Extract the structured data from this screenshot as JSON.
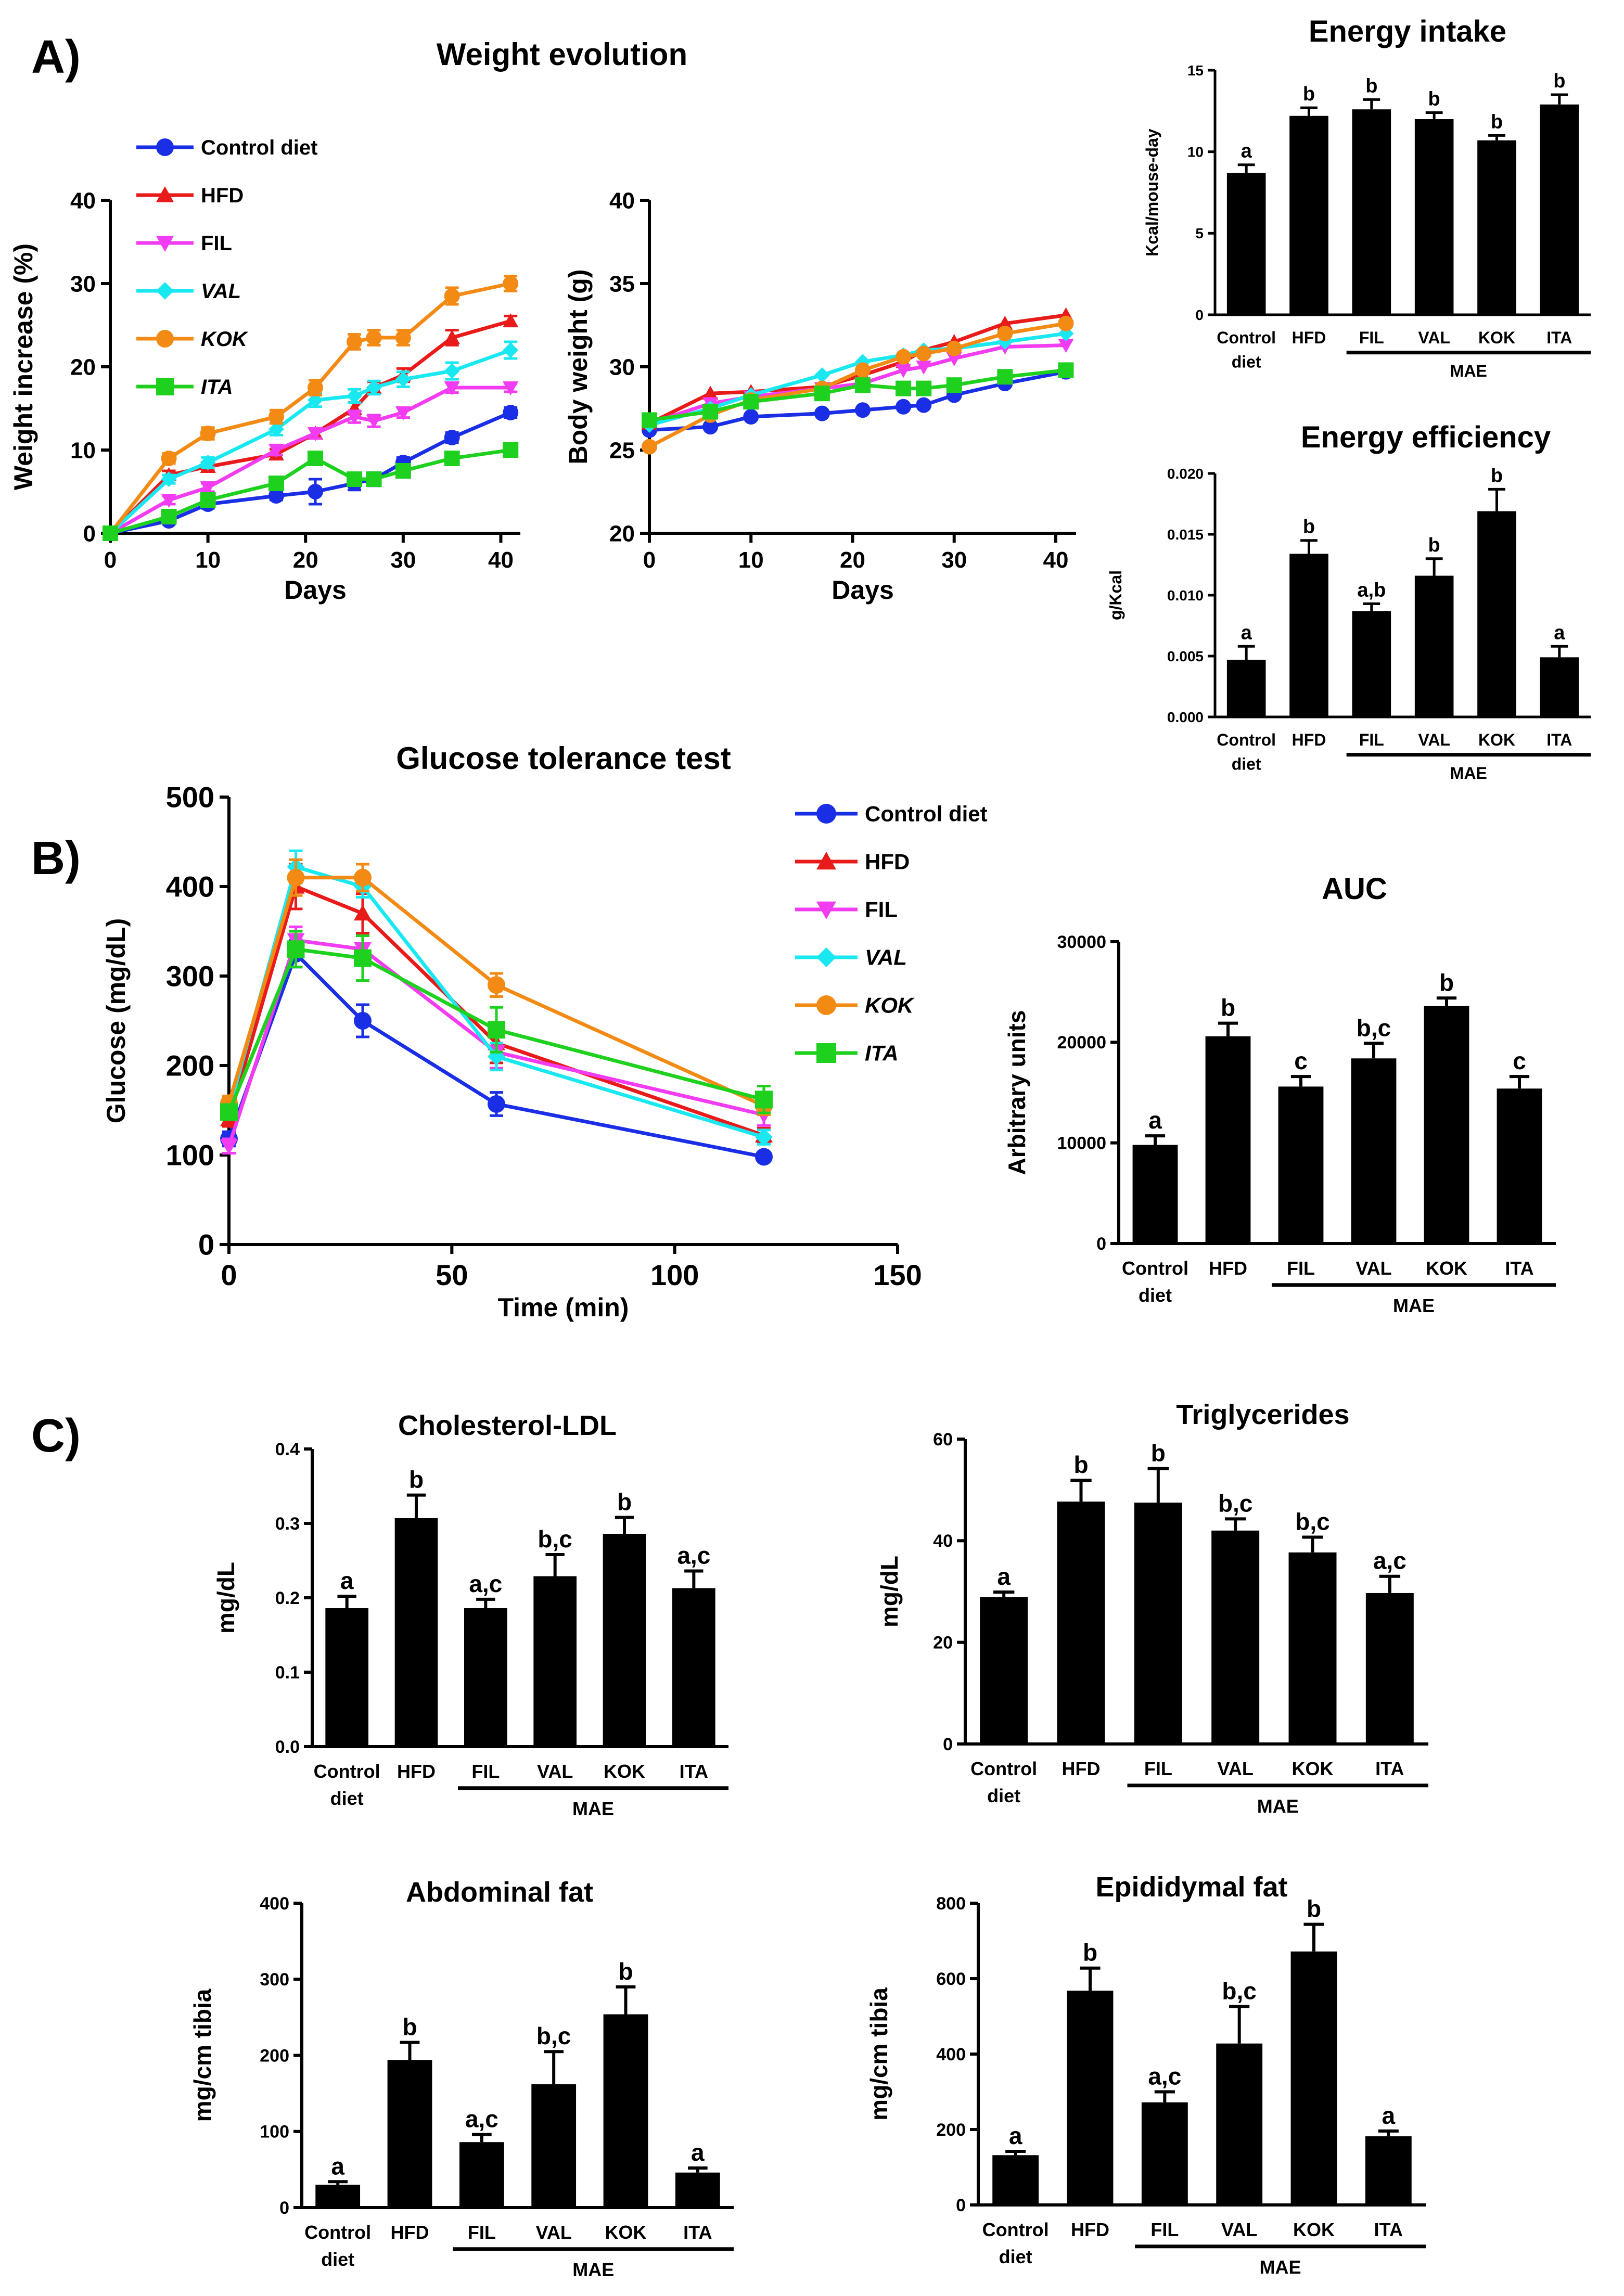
{
  "panels": {
    "a": "A)",
    "b": "B)",
    "c": "C)"
  },
  "legend": {
    "control": "Control diet",
    "hfd": "HFD",
    "fil": "FIL",
    "val": "VAL",
    "kok": "KOK",
    "ita": "ITA"
  },
  "group_label": "MAE",
  "chart_data": [
    {
      "id": "weight_increase",
      "type": "line",
      "title": "Weight evolution",
      "xlabel": "Days",
      "ylabel": "Weight increase (%)",
      "xlim": [
        0,
        42
      ],
      "ylim": [
        0,
        40
      ],
      "xticks": [
        0,
        10,
        20,
        30,
        40
      ],
      "yticks": [
        0,
        10,
        20,
        30,
        40
      ],
      "series": [
        {
          "name": "Control diet",
          "color": "#1a2ee6",
          "marker": "circle",
          "x": [
            0,
            6,
            10,
            17,
            21,
            25,
            27,
            30,
            35,
            41
          ],
          "y": [
            0,
            1.5,
            3.5,
            4.5,
            5,
            6,
            6.5,
            8.5,
            11.5,
            14.5
          ],
          "err": [
            0,
            0.4,
            0.5,
            0.5,
            1.5,
            0.8,
            0.8,
            0.6,
            0.6,
            0.6
          ]
        },
        {
          "name": "HFD",
          "color": "#e81a1a",
          "marker": "triangle",
          "x": [
            0,
            6,
            10,
            17,
            21,
            25,
            27,
            30,
            35,
            41
          ],
          "y": [
            0,
            7,
            8,
            9.5,
            12,
            15,
            17.5,
            19,
            23.5,
            25.5
          ],
          "err": [
            0,
            0.5,
            0.5,
            0.6,
            0.6,
            0.7,
            0.7,
            0.8,
            0.9,
            0.6
          ]
        },
        {
          "name": "FIL",
          "color": "#f23cf2",
          "marker": "triangle-down",
          "x": [
            0,
            6,
            10,
            17,
            21,
            25,
            27,
            30,
            35,
            41
          ],
          "y": [
            0,
            4,
            5.5,
            10,
            12,
            14,
            13.5,
            14.5,
            17.5,
            17.5
          ],
          "err": [
            0,
            0.5,
            0.5,
            0.6,
            0.6,
            0.7,
            0.7,
            0.6,
            0.6,
            0.5
          ]
        },
        {
          "name": "VAL",
          "color": "#1ae8f0",
          "marker": "diamond",
          "x": [
            0,
            6,
            10,
            17,
            21,
            25,
            27,
            30,
            35,
            41
          ],
          "y": [
            0,
            6.5,
            8.5,
            12.5,
            16,
            16.5,
            17.5,
            18.5,
            19.5,
            22
          ],
          "err": [
            0,
            0.5,
            0.6,
            0.7,
            0.8,
            0.8,
            0.8,
            0.9,
            1.0,
            1.0
          ]
        },
        {
          "name": "KOK",
          "color": "#f28a14",
          "marker": "circle",
          "x": [
            0,
            6,
            10,
            17,
            21,
            25,
            27,
            30,
            35,
            41
          ],
          "y": [
            0,
            9,
            12,
            14,
            17.5,
            23,
            23.5,
            23.5,
            28.5,
            30
          ],
          "err": [
            0,
            0.6,
            0.7,
            0.8,
            0.9,
            0.9,
            0.9,
            0.9,
            1.0,
            0.9
          ]
        },
        {
          "name": "ITA",
          "color": "#1fd11f",
          "marker": "square",
          "x": [
            0,
            6,
            10,
            17,
            21,
            25,
            27,
            30,
            35,
            41
          ],
          "y": [
            0,
            2,
            4,
            6,
            9,
            6.5,
            6.5,
            7.5,
            9,
            10
          ],
          "err": [
            0,
            0.4,
            0.5,
            0.5,
            0.6,
            0.5,
            0.5,
            0.5,
            0.6,
            0.5
          ]
        }
      ]
    },
    {
      "id": "body_weight",
      "type": "line",
      "xlabel": "Days",
      "ylabel": "Body weight (g)",
      "xlim": [
        0,
        42
      ],
      "ylim": [
        20,
        40
      ],
      "xticks": [
        0,
        10,
        20,
        30,
        40
      ],
      "yticks": [
        20,
        25,
        30,
        35,
        40
      ],
      "series": [
        {
          "name": "Control diet",
          "color": "#1a2ee6",
          "marker": "circle",
          "x": [
            0,
            6,
            10,
            17,
            21,
            25,
            27,
            30,
            35,
            41
          ],
          "y": [
            26.2,
            26.4,
            27.0,
            27.2,
            27.4,
            27.6,
            27.7,
            28.3,
            29.0,
            29.7
          ]
        },
        {
          "name": "HFD",
          "color": "#e81a1a",
          "marker": "triangle",
          "x": [
            0,
            6,
            10,
            17,
            21,
            25,
            27,
            30,
            35,
            41
          ],
          "y": [
            26.6,
            28.4,
            28.5,
            28.8,
            29.5,
            30.3,
            31.0,
            31.5,
            32.6,
            33.1
          ]
        },
        {
          "name": "FIL",
          "color": "#f23cf2",
          "marker": "triangle-down",
          "x": [
            0,
            6,
            10,
            17,
            21,
            25,
            27,
            30,
            35,
            41
          ],
          "y": [
            26.6,
            27.8,
            28.2,
            28.7,
            29.0,
            29.8,
            30.0,
            30.5,
            31.2,
            31.3
          ]
        },
        {
          "name": "VAL",
          "color": "#1ae8f0",
          "marker": "diamond",
          "x": [
            0,
            6,
            10,
            17,
            21,
            25,
            27,
            30,
            35,
            41
          ],
          "y": [
            26.5,
            27.5,
            28.3,
            29.5,
            30.3,
            30.7,
            31.0,
            31.1,
            31.5,
            32.0
          ]
        },
        {
          "name": "KOK",
          "color": "#f28a14",
          "marker": "circle",
          "x": [
            0,
            6,
            10,
            17,
            21,
            25,
            27,
            30,
            35,
            41
          ],
          "y": [
            25.2,
            27.1,
            28.0,
            28.7,
            29.8,
            30.6,
            30.8,
            31.1,
            32.0,
            32.6
          ]
        },
        {
          "name": "ITA",
          "color": "#1fd11f",
          "marker": "square",
          "x": [
            0,
            6,
            10,
            17,
            21,
            25,
            27,
            30,
            35,
            41
          ],
          "y": [
            26.8,
            27.3,
            27.9,
            28.4,
            28.9,
            28.7,
            28.7,
            28.9,
            29.4,
            29.8
          ]
        }
      ]
    },
    {
      "id": "energy_intake",
      "type": "bar",
      "title": "Energy intake",
      "ylabel": "Kcal/mouse-day",
      "categories": [
        "Control diet",
        "HFD",
        "FIL",
        "VAL",
        "KOK",
        "ITA"
      ],
      "values": [
        8.7,
        12.2,
        12.6,
        12.0,
        10.7,
        12.9
      ],
      "errors": [
        0.5,
        0.5,
        0.6,
        0.4,
        0.3,
        0.6
      ],
      "letters": [
        "a",
        "b",
        "b",
        "b",
        "b",
        "b"
      ],
      "ylim": [
        0,
        15
      ],
      "yticks": [
        0,
        5,
        10,
        15
      ],
      "ytick_labels": [
        "0",
        "5",
        "10",
        "15"
      ]
    },
    {
      "id": "energy_efficiency",
      "type": "bar",
      "title": "Energy efficiency",
      "ylabel": "g/Kcal",
      "categories": [
        "Control diet",
        "HFD",
        "FIL",
        "VAL",
        "KOK",
        "ITA"
      ],
      "values": [
        0.0047,
        0.0134,
        0.0087,
        0.0116,
        0.0169,
        0.0049
      ],
      "errors": [
        0.0011,
        0.0011,
        0.0006,
        0.0014,
        0.0018,
        0.0009
      ],
      "letters": [
        "a",
        "b",
        "a,b",
        "b",
        "b",
        "a"
      ],
      "ylim": [
        0,
        0.02
      ],
      "yticks": [
        0,
        0.005,
        0.01,
        0.015,
        0.02
      ],
      "ytick_labels": [
        "0.000",
        "0.005",
        "0.010",
        "0.015",
        "0.020"
      ]
    },
    {
      "id": "glucose_tolerance",
      "type": "line",
      "title": "Glucose tolerance test",
      "xlabel": "Time (min)",
      "ylabel": "Glucose (mg/dL)",
      "xlim": [
        0,
        150
      ],
      "ylim": [
        0,
        500
      ],
      "xticks": [
        0,
        50,
        100,
        150
      ],
      "yticks": [
        0,
        100,
        200,
        300,
        400,
        500
      ],
      "series": [
        {
          "name": "Control diet",
          "color": "#1a2ee6",
          "marker": "circle",
          "x": [
            0,
            15,
            30,
            60,
            120
          ],
          "y": [
            118,
            325,
            250,
            157,
            98
          ],
          "err": [
            8,
            15,
            18,
            13,
            5
          ]
        },
        {
          "name": "HFD",
          "color": "#e81a1a",
          "marker": "triangle",
          "x": [
            0,
            15,
            30,
            60,
            120
          ],
          "y": [
            140,
            400,
            370,
            225,
            122
          ],
          "err": [
            8,
            25,
            22,
            22,
            8
          ]
        },
        {
          "name": "FIL",
          "color": "#f23cf2",
          "marker": "triangle-down",
          "x": [
            0,
            15,
            30,
            60,
            120
          ],
          "y": [
            110,
            340,
            330,
            215,
            145
          ],
          "err": [
            8,
            15,
            15,
            18,
            12
          ]
        },
        {
          "name": "VAL",
          "color": "#1ae8f0",
          "marker": "diamond",
          "x": [
            0,
            15,
            30,
            60,
            120
          ],
          "y": [
            150,
            422,
            400,
            210,
            120
          ],
          "err": [
            8,
            18,
            12,
            15,
            8
          ]
        },
        {
          "name": "KOK",
          "color": "#f28a14",
          "marker": "circle",
          "x": [
            0,
            15,
            30,
            60,
            120
          ],
          "y": [
            158,
            410,
            410,
            290,
            155
          ],
          "err": [
            8,
            20,
            15,
            13,
            10
          ]
        },
        {
          "name": "ITA",
          "color": "#1fd11f",
          "marker": "square",
          "x": [
            0,
            15,
            30,
            60,
            120
          ],
          "y": [
            148,
            330,
            320,
            240,
            162
          ],
          "err": [
            8,
            20,
            25,
            25,
            15
          ]
        }
      ]
    },
    {
      "id": "auc",
      "type": "bar",
      "title": "AUC",
      "ylabel": "Arbitrary units",
      "categories": [
        "Control diet",
        "HFD",
        "FIL",
        "VAL",
        "KOK",
        "ITA"
      ],
      "values": [
        9800,
        20600,
        15600,
        18400,
        23600,
        15400
      ],
      "errors": [
        900,
        1300,
        1000,
        1500,
        800,
        1200
      ],
      "letters": [
        "a",
        "b",
        "c",
        "b,c",
        "b",
        "c"
      ],
      "ylim": [
        0,
        30000
      ],
      "yticks": [
        0,
        10000,
        20000,
        30000
      ],
      "ytick_labels": [
        "0",
        "10000",
        "20000",
        "30000"
      ]
    },
    {
      "id": "ldl",
      "type": "bar",
      "title": "Cholesterol-LDL",
      "ylabel": "mg/dL",
      "categories": [
        "Control diet",
        "HFD",
        "FIL",
        "VAL",
        "KOK",
        "ITA"
      ],
      "values": [
        0.186,
        0.307,
        0.186,
        0.229,
        0.286,
        0.213
      ],
      "errors": [
        0.016,
        0.031,
        0.012,
        0.029,
        0.022,
        0.023
      ],
      "letters": [
        "a",
        "b",
        "a,c",
        "b,c",
        "b",
        "a,c"
      ],
      "ylim": [
        0,
        0.4
      ],
      "yticks": [
        0,
        0.1,
        0.2,
        0.3,
        0.4
      ],
      "ytick_labels": [
        "0.0",
        "0.1",
        "0.2",
        "0.3",
        "0.4"
      ]
    },
    {
      "id": "triglycerides",
      "type": "bar",
      "title": "Triglycerides",
      "ylabel": "mg/dL",
      "categories": [
        "Control diet",
        "HFD",
        "FIL",
        "VAL",
        "KOK",
        "ITA"
      ],
      "values": [
        28.9,
        47.7,
        47.5,
        42.0,
        37.7,
        29.7
      ],
      "errors": [
        1.0,
        4.2,
        6.7,
        2.3,
        3.0,
        3.3
      ],
      "letters": [
        "a",
        "b",
        "b",
        "b,c",
        "b,c",
        "a,c"
      ],
      "ylim": [
        0,
        60
      ],
      "yticks": [
        0,
        20,
        40,
        60
      ],
      "ytick_labels": [
        "0",
        "20",
        "40",
        "60"
      ]
    },
    {
      "id": "abdominal_fat",
      "type": "bar",
      "title": "Abdominal fat",
      "ylabel": "mg/cm tibia",
      "categories": [
        "Control diet",
        "HFD",
        "FIL",
        "VAL",
        "KOK",
        "ITA"
      ],
      "values": [
        30,
        194,
        86,
        162,
        254,
        46
      ],
      "errors": [
        4,
        23,
        10,
        43,
        36,
        6
      ],
      "letters": [
        "a",
        "b",
        "a,c",
        "b,c",
        "b",
        "a"
      ],
      "ylim": [
        0,
        400
      ],
      "yticks": [
        0,
        100,
        200,
        300,
        400
      ],
      "ytick_labels": [
        "0",
        "100",
        "200",
        "300",
        "400"
      ]
    },
    {
      "id": "epididymal_fat",
      "type": "bar",
      "title": "Epididymal fat",
      "ylabel": "mg/cm tibia",
      "categories": [
        "Control diet",
        "HFD",
        "FIL",
        "VAL",
        "KOK",
        "ITA"
      ],
      "values": [
        132,
        568,
        272,
        428,
        672,
        182
      ],
      "errors": [
        10,
        60,
        28,
        98,
        72,
        14
      ],
      "letters": [
        "a",
        "b",
        "a,c",
        "b,c",
        "b",
        "a"
      ],
      "ylim": [
        0,
        800
      ],
      "yticks": [
        0,
        200,
        400,
        600,
        800
      ],
      "ytick_labels": [
        "0",
        "200",
        "400",
        "600",
        "800"
      ]
    }
  ]
}
